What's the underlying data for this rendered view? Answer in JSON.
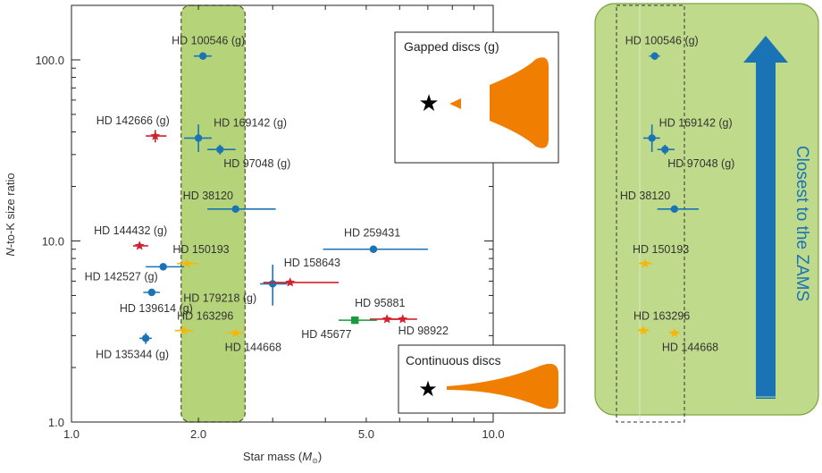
{
  "chart_data": {
    "type": "scatter",
    "xlabel_main": "Star mass (",
    "xlabel_sym": "M",
    "xlabel_end": ")",
    "ylabel_pre": "N",
    "ylabel_post": "-to-K size ratio",
    "xscale": "log",
    "yscale": "log",
    "xlim": [
      1.0,
      10.0
    ],
    "ylim": [
      1.0,
      200.0
    ],
    "xticks": [
      {
        "value": 1.0,
        "label": "1.0"
      },
      {
        "value": 2.0,
        "label": "2.0"
      },
      {
        "value": 5.0,
        "label": "5.0"
      },
      {
        "value": 10.0,
        "label": "10.0"
      }
    ],
    "yticks": [
      {
        "value": 1.0,
        "label": "1.0"
      },
      {
        "value": 10.0,
        "label": "10.0"
      },
      {
        "value": 100.0,
        "label": "100.0"
      }
    ],
    "highlight_band": {
      "x_from": 1.82,
      "x_to": 2.58
    },
    "colors": {
      "blue": "#1a73b5",
      "red": "#d4202c",
      "yellow": "#f5b80a",
      "green": "#1a9a3a",
      "orange": "#f07e00",
      "band_fill": "#b5d47a",
      "band_stroke": "#4a5a20",
      "arrow": "#1a73b5",
      "panel_fill": "#bfda8a",
      "panel_stroke": "#7aa640"
    },
    "series": [
      {
        "color": "blue",
        "marker": "circle",
        "points": [
          {
            "label": "HD 100546 (g)",
            "x": 2.05,
            "y": 105,
            "xerr": [
              1.95,
              2.15
            ],
            "yerr": [
              100,
              110
            ]
          },
          {
            "label": "HD 169142 (g)",
            "x": 2.0,
            "y": 37,
            "xerr": [
              1.85,
              2.15
            ],
            "yerr": [
              31,
              44
            ]
          },
          {
            "label": "HD 97048 (g)",
            "x": 2.25,
            "y": 32,
            "xerr": [
              2.1,
              2.45
            ],
            "yerr": [
              30,
              34
            ]
          },
          {
            "label": "HD 38120",
            "x": 2.45,
            "y": 15,
            "xerr": [
              2.1,
              3.05
            ],
            "yerr": [
              14.5,
              15.5
            ]
          },
          {
            "label": "HD 259431",
            "x": 5.2,
            "y": 9.0,
            "xerr": [
              3.95,
              7.0
            ],
            "yerr": [
              8.7,
              9.3
            ]
          },
          {
            "label": "HD 142527 (g)",
            "x": 1.65,
            "y": 7.2,
            "xerr": [
              1.5,
              1.85
            ],
            "yerr": [
              7.0,
              7.4
            ]
          },
          {
            "label": "HD 139614 (g)",
            "x": 1.55,
            "y": 5.2,
            "xerr": [
              1.48,
              1.62
            ],
            "yerr": [
              5.0,
              5.4
            ]
          },
          {
            "label": "HD 179218 (g)",
            "x": 3.0,
            "y": 5.8,
            "xerr": [
              2.8,
              3.25
            ],
            "yerr": [
              4.4,
              7.4
            ]
          },
          {
            "label": "HD 135344 (g)",
            "x": 1.5,
            "y": 2.9,
            "xerr": [
              1.45,
              1.55
            ],
            "yerr": [
              2.7,
              3.1
            ]
          }
        ]
      },
      {
        "color": "red",
        "marker": "star",
        "points": [
          {
            "label": "HD 142666 (g)",
            "x": 1.58,
            "y": 38,
            "xerr": [
              1.5,
              1.68
            ],
            "yerr": [
              35,
              41
            ]
          },
          {
            "label": "HD 144432 (g)",
            "x": 1.45,
            "y": 9.4,
            "xerr": [
              1.4,
              1.52
            ],
            "yerr": [
              9.2,
              9.6
            ]
          },
          {
            "label": "HD 158643",
            "x": 3.3,
            "y": 5.9,
            "xerr": [
              2.85,
              4.3
            ],
            "yerr": [
              5.8,
              6.0
            ]
          },
          {
            "label": "HD 95881",
            "x": 5.6,
            "y": 3.7,
            "xerr": [
              5.1,
              6.1
            ],
            "yerr": [
              3.6,
              3.8
            ]
          },
          {
            "label": "HD 98922",
            "x": 6.1,
            "y": 3.7,
            "xerr": [
              5.6,
              6.6
            ],
            "yerr": [
              3.6,
              3.8
            ]
          }
        ]
      },
      {
        "color": "yellow",
        "marker": "star",
        "points": [
          {
            "label": "HD 150193",
            "x": 1.88,
            "y": 7.5,
            "xerr": [
              1.78,
              2.0
            ],
            "yerr": [
              7.3,
              7.7
            ]
          },
          {
            "label": "HD 163296",
            "x": 1.85,
            "y": 3.2,
            "xerr": [
              1.76,
              1.95
            ],
            "yerr": [
              3.1,
              3.3
            ]
          },
          {
            "label": "HD 144668",
            "x": 2.45,
            "y": 3.1,
            "xerr": [
              2.34,
              2.56
            ],
            "yerr": [
              3.0,
              3.2
            ]
          }
        ]
      },
      {
        "color": "green",
        "marker": "square",
        "points": [
          {
            "label": "HD 45677",
            "x": 4.7,
            "y": 3.65,
            "xerr": [
              4.3,
              5.3
            ],
            "yerr": [
              3.55,
              3.75
            ]
          }
        ]
      }
    ],
    "legend_gapped": "Gapped discs (g)",
    "legend_continuous": "Continuous discs",
    "zoom_panel_label": "Closest to the ZAMS",
    "zoom_panel_labels": [
      "HD 100546 (g)",
      "HD 169142 (g)",
      "HD 97048 (g)",
      "HD 38120",
      "HD 150193",
      "HD 163296",
      "HD 144668"
    ]
  }
}
